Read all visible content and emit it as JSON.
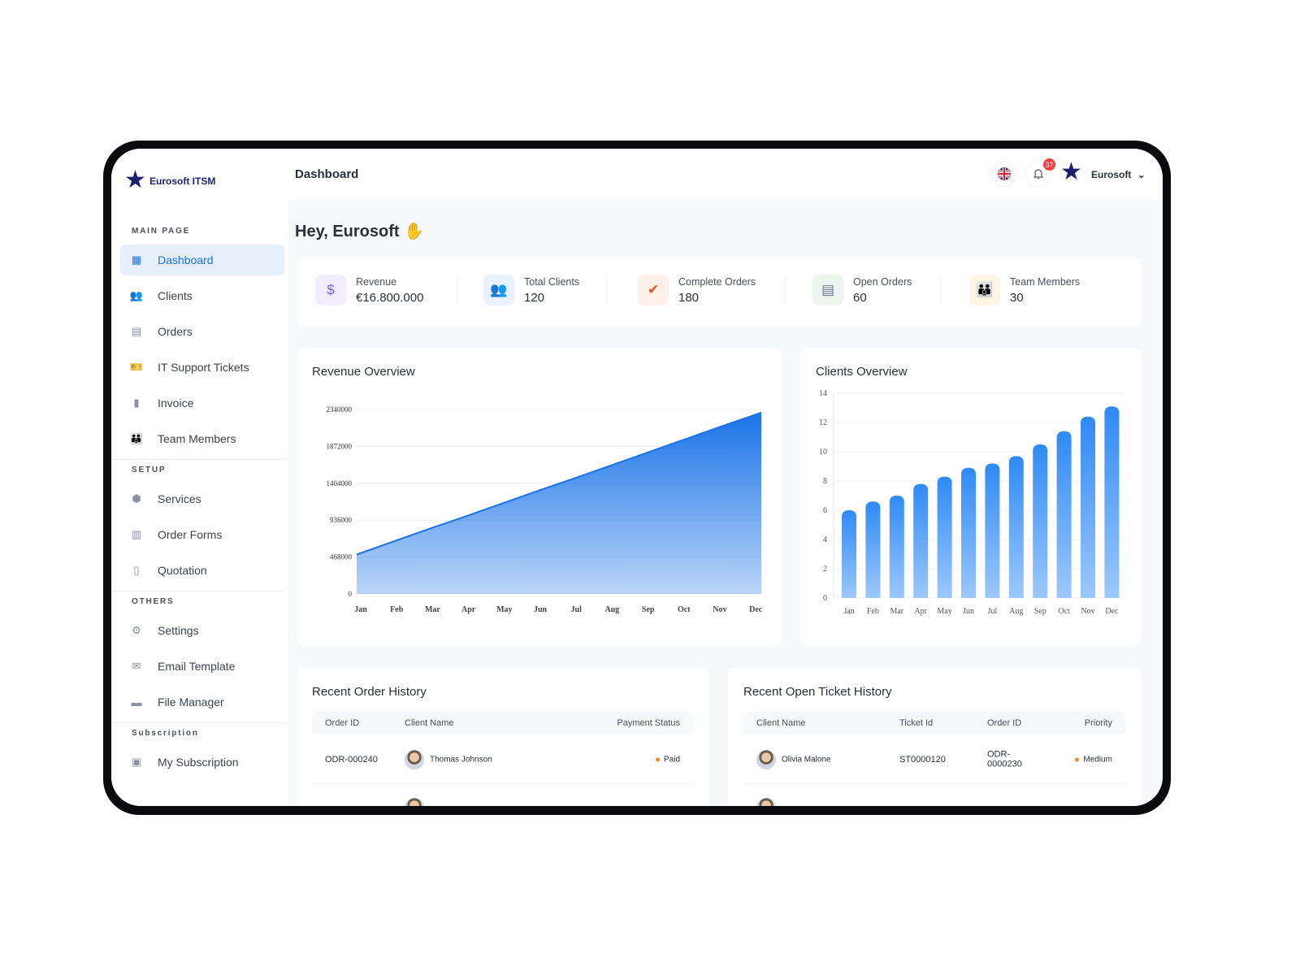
{
  "brand": {
    "name": "Eurosoft ITSM",
    "primary": "#1a73e8",
    "navy": "#1a1f6e"
  },
  "header": {
    "title": "Dashboard",
    "notification_count": "37",
    "user": "Eurosoft",
    "language": "English (UK)"
  },
  "greeting": "Hey, Eurosoft",
  "sidebar": {
    "sections": [
      {
        "label": "MAIN PAGE",
        "items": [
          {
            "label": "Dashboard",
            "icon": "grid-icon",
            "active": true
          },
          {
            "label": "Clients",
            "icon": "users-icon"
          },
          {
            "label": "Orders",
            "icon": "document-icon"
          },
          {
            "label": "IT Support Tickets",
            "icon": "ticket-icon"
          },
          {
            "label": "Invoice",
            "icon": "invoice-icon"
          },
          {
            "label": "Team Members",
            "icon": "team-icon"
          }
        ]
      },
      {
        "label": "SETUP",
        "items": [
          {
            "label": "Services",
            "icon": "box-icon"
          },
          {
            "label": "Order Forms",
            "icon": "table-icon"
          },
          {
            "label": "Quotation",
            "icon": "quote-icon"
          }
        ]
      },
      {
        "label": "OTHERS",
        "items": [
          {
            "label": "Settings",
            "icon": "gear-icon"
          },
          {
            "label": "Email Template",
            "icon": "mail-icon"
          },
          {
            "label": "File Manager",
            "icon": "folder-icon"
          }
        ]
      },
      {
        "label": "Subscription",
        "items": [
          {
            "label": "My Subscription",
            "icon": "subscription-icon"
          }
        ]
      }
    ]
  },
  "stats": [
    {
      "label": "Revenue",
      "value": "€16.800.000",
      "icon": "money-bag-icon",
      "color": "#7b5cf0",
      "bg": "#f1edff"
    },
    {
      "label": "Total Clients",
      "value": "120",
      "icon": "users-icon",
      "color": "#1a73e8",
      "bg": "#e8f1fd"
    },
    {
      "label": "Complete Orders",
      "value": "180",
      "icon": "check-clipboard-icon",
      "color": "#f04e1e",
      "bg": "#fff0ea"
    },
    {
      "label": "Open Orders",
      "value": "60",
      "icon": "document-icon",
      "color": "#6b7590",
      "bg": "#edf5ef"
    },
    {
      "label": "Team Members",
      "value": "30",
      "icon": "team-icon",
      "color": "#f5b01e",
      "bg": "#fff6e6"
    }
  ],
  "chart_data": [
    {
      "type": "area",
      "title": "Revenue Overview",
      "categories": [
        "Jan",
        "Feb",
        "Mar",
        "Apr",
        "May",
        "Jun",
        "Jul",
        "Aug",
        "Sep",
        "Oct",
        "Nov",
        "Dec"
      ],
      "values": [
        500000,
        665000,
        830000,
        990000,
        1155000,
        1320000,
        1480000,
        1645000,
        1810000,
        1975000,
        2140000,
        2300000
      ],
      "yticks": [
        "0",
        "468000",
        "936000",
        "1404000",
        "1872000",
        "2340000"
      ],
      "ylim": [
        0,
        2340000
      ],
      "grid": true,
      "color": "#1a73e8"
    },
    {
      "type": "bar",
      "title": "Clients Overview",
      "categories": [
        "Jan",
        "Feb",
        "Mar",
        "Apr",
        "May",
        "Jun",
        "Jul",
        "Aug",
        "Sep",
        "Oct",
        "Nov",
        "Dec"
      ],
      "values": [
        6,
        6.6,
        7,
        7.8,
        8.3,
        8.9,
        9.2,
        9.7,
        10.5,
        11.4,
        12.4,
        13.1
      ],
      "yticks": [
        "0",
        "2",
        "4",
        "6",
        "8",
        "10",
        "12",
        "14"
      ],
      "ylim": [
        0,
        14
      ],
      "grid": true,
      "color": "#3d95f5"
    }
  ],
  "orders": {
    "title": "Recent Order History",
    "columns": [
      "Order ID",
      "Client Name",
      "Payment Status"
    ],
    "rows": [
      {
        "order_id": "ODR-000240",
        "client": "Thomas Johnson",
        "status": "Paid"
      }
    ]
  },
  "tickets": {
    "title": "Recent Open Ticket History",
    "columns": [
      "Client Name",
      "Ticket Id",
      "Order ID",
      "Priority"
    ],
    "rows": [
      {
        "client": "Olivia Malone",
        "ticket_id": "ST0000120",
        "order_id": "ODR-\n0000230",
        "priority": "Medium"
      }
    ]
  }
}
